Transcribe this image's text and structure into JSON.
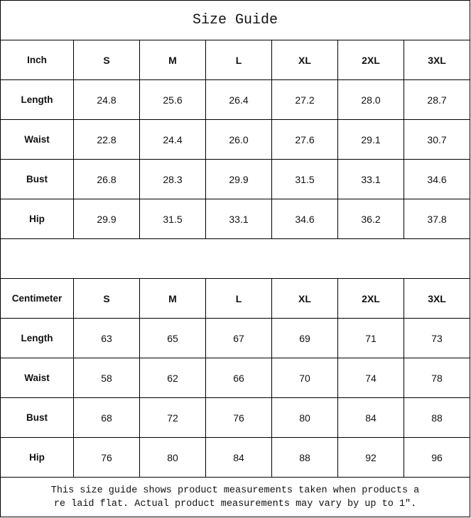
{
  "title": "Size Guide",
  "sizes": [
    "S",
    "M",
    "L",
    "XL",
    "2XL",
    "3XL"
  ],
  "tables": [
    {
      "unit": "Inch",
      "rows": [
        {
          "label": "Length",
          "values": [
            "24.8",
            "25.6",
            "26.4",
            "27.2",
            "28.0",
            "28.7"
          ]
        },
        {
          "label": "Waist",
          "values": [
            "22.8",
            "24.4",
            "26.0",
            "27.6",
            "29.1",
            "30.7"
          ]
        },
        {
          "label": "Bust",
          "values": [
            "26.8",
            "28.3",
            "29.9",
            "31.5",
            "33.1",
            "34.6"
          ]
        },
        {
          "label": "Hip",
          "values": [
            "29.9",
            "31.5",
            "33.1",
            "34.6",
            "36.2",
            "37.8"
          ]
        }
      ]
    },
    {
      "unit": "Centimeter",
      "rows": [
        {
          "label": "Length",
          "values": [
            "63",
            "65",
            "67",
            "69",
            "71",
            "73"
          ]
        },
        {
          "label": "Waist",
          "values": [
            "58",
            "62",
            "66",
            "70",
            "74",
            "78"
          ]
        },
        {
          "label": "Bust",
          "values": [
            "68",
            "72",
            "76",
            "80",
            "84",
            "88"
          ]
        },
        {
          "label": "Hip",
          "values": [
            "76",
            "80",
            "84",
            "88",
            "92",
            "96"
          ]
        }
      ]
    }
  ],
  "footer": {
    "line1": "This size guide shows product measurements taken when products a",
    "line2": "re laid flat. Actual product measurements may vary by up to 1″."
  }
}
